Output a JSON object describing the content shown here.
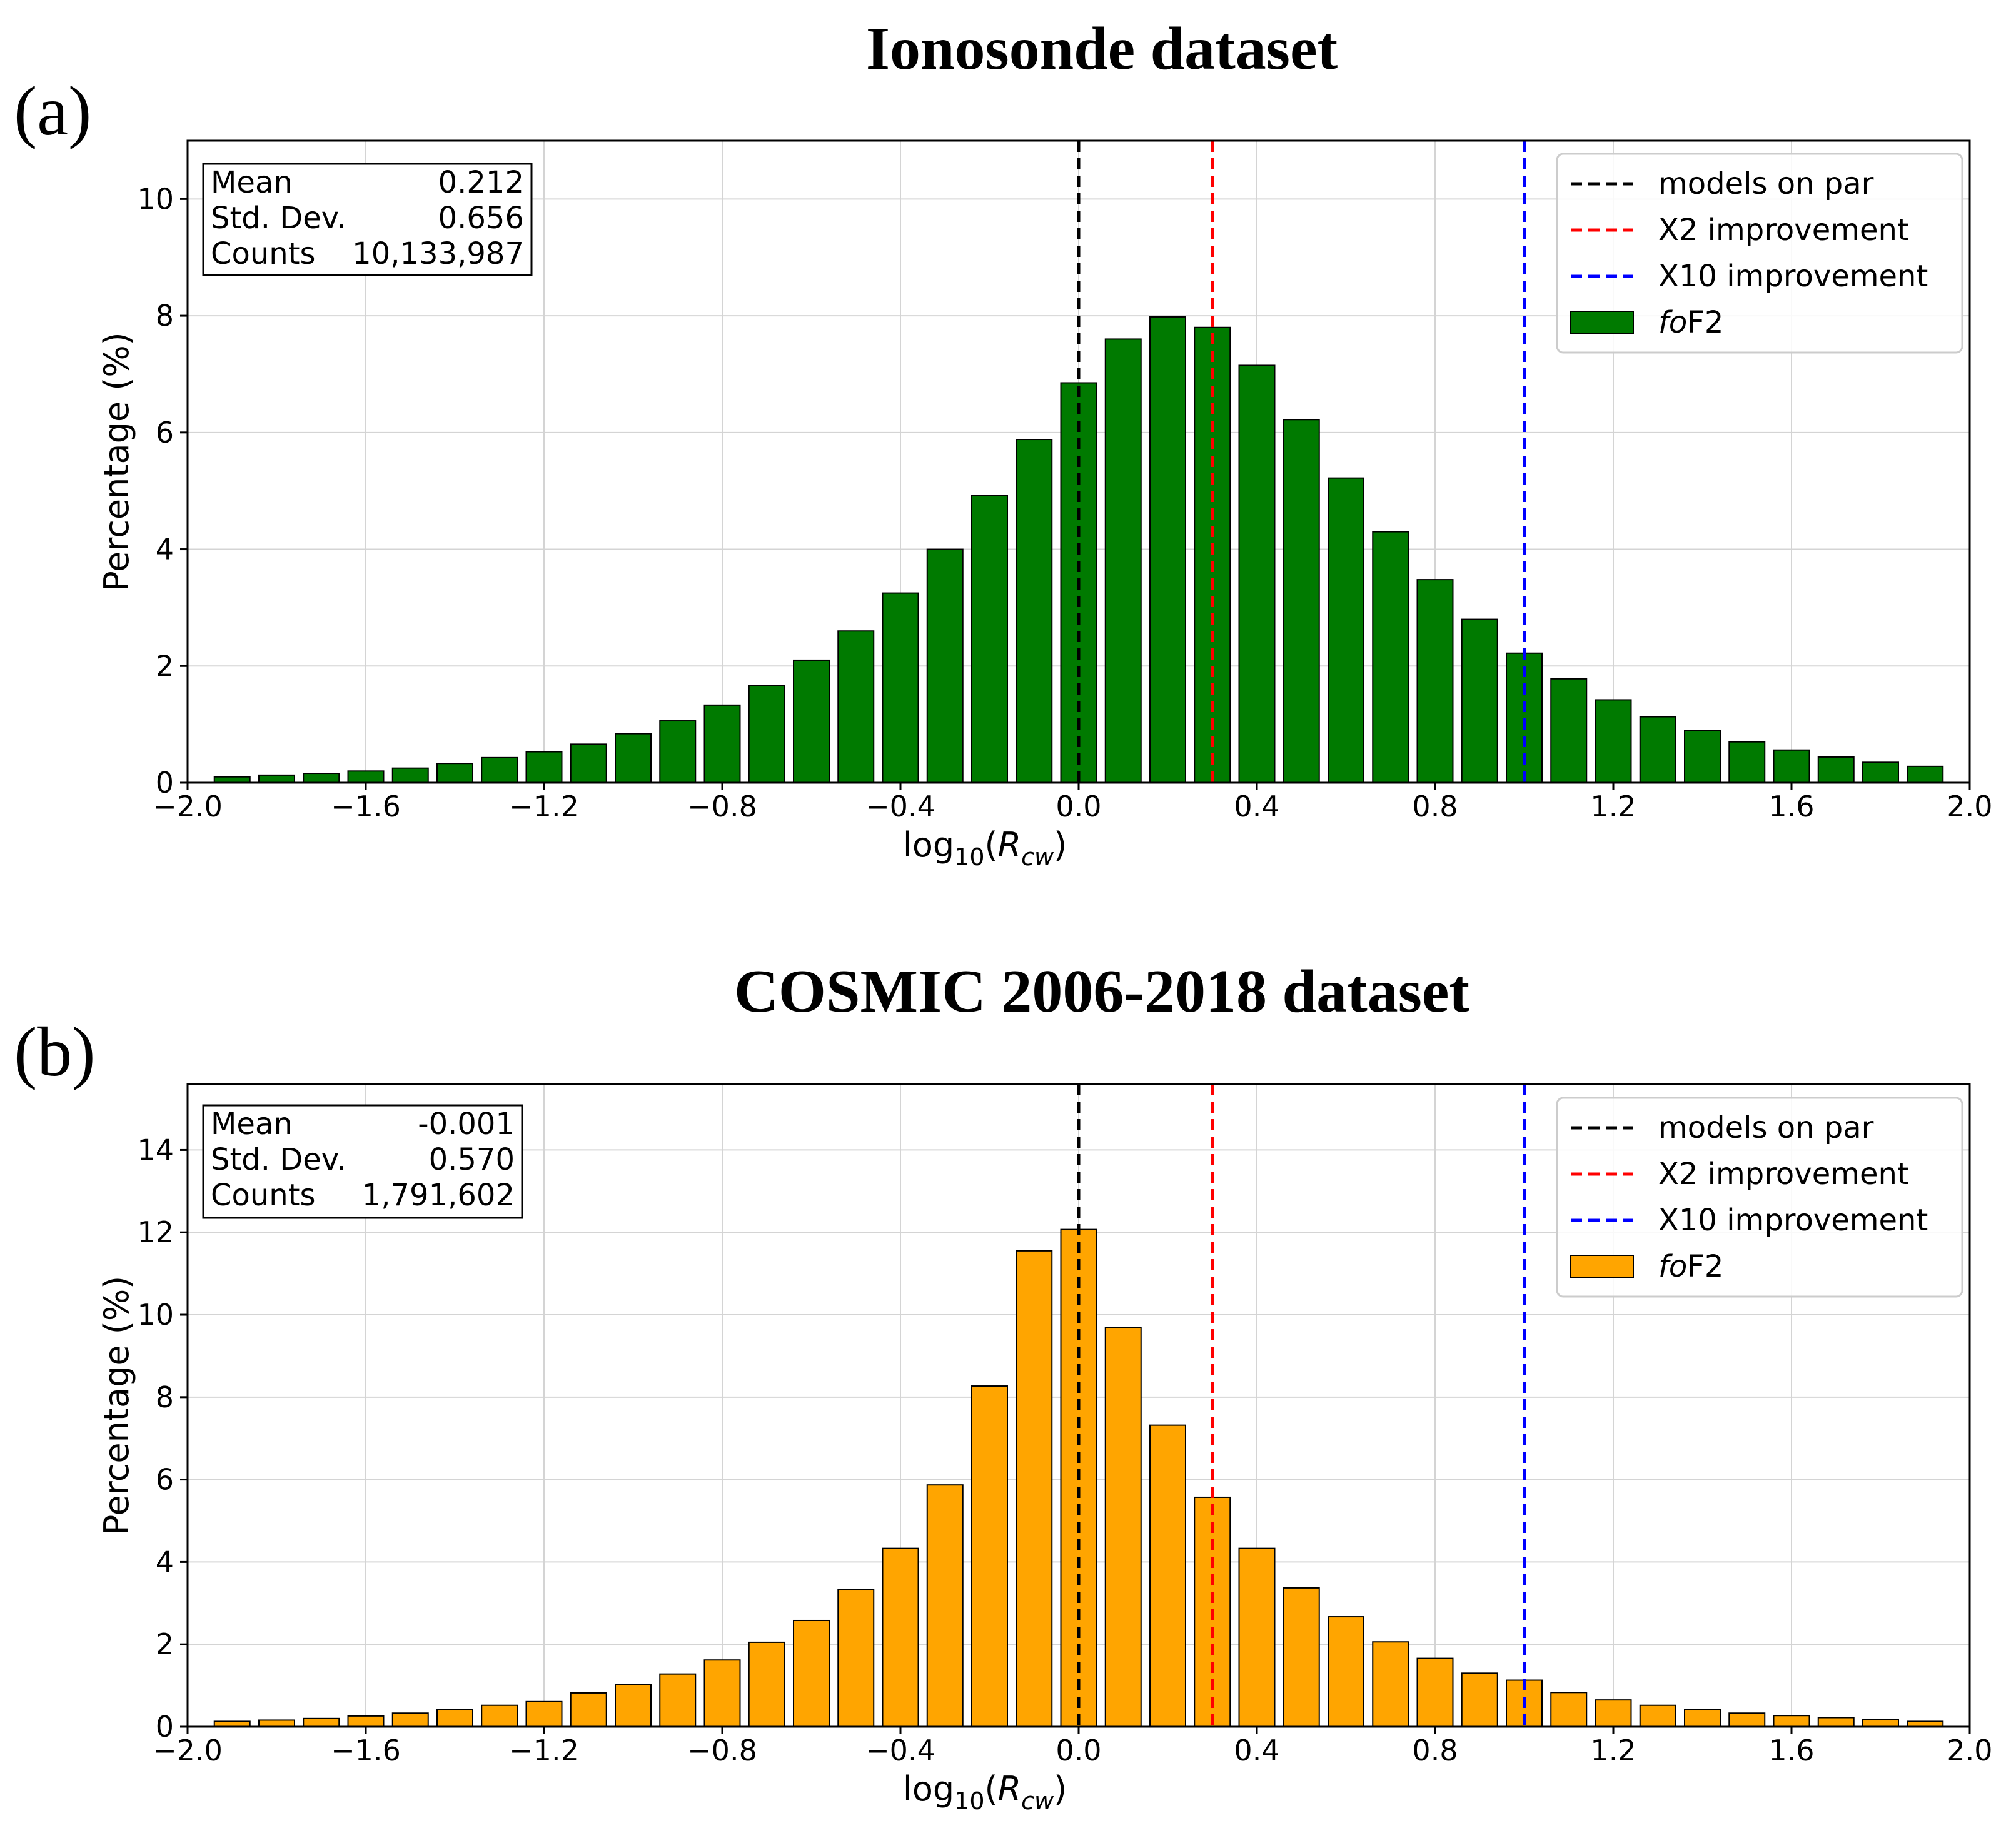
{
  "chart_data": [
    {
      "type": "bar",
      "panel_label": "(a)",
      "title": "Ionosonde dataset",
      "xlabel": "log10(Rcw)",
      "xlabel_base": "log",
      "xlabel_sub": "10",
      "xlabel_var": "R",
      "xlabel_var_sub": "cw",
      "ylabel": "Percentage (%)",
      "xlim": [
        -2.0,
        2.0
      ],
      "ylim": [
        0,
        11
      ],
      "xticks": [
        "−2.0",
        "−1.6",
        "−1.2",
        "−0.8",
        "−0.4",
        "0.0",
        "0.4",
        "0.8",
        "1.2",
        "1.6",
        "2.0"
      ],
      "xtick_values": [
        -2.0,
        -1.6,
        -1.2,
        -0.8,
        -0.4,
        0.0,
        0.4,
        0.8,
        1.2,
        1.6,
        2.0
      ],
      "yticks": [
        0,
        2,
        4,
        6,
        8,
        10
      ],
      "bar_color": "#007a00",
      "bin_centers": [
        -1.9,
        -1.8,
        -1.7,
        -1.6,
        -1.5,
        -1.4,
        -1.3,
        -1.2,
        -1.1,
        -1.0,
        -0.9,
        -0.8,
        -0.7,
        -0.6,
        -0.5,
        -0.4,
        -0.3,
        -0.2,
        -0.1,
        0.0,
        0.1,
        0.2,
        0.3,
        0.4,
        0.5,
        0.6,
        0.7,
        0.8,
        0.9,
        1.0,
        1.1,
        1.2,
        1.3,
        1.4,
        1.5,
        1.6,
        1.7,
        1.8,
        1.9
      ],
      "values": [
        0.1,
        0.13,
        0.16,
        0.2,
        0.25,
        0.33,
        0.43,
        0.53,
        0.66,
        0.84,
        1.06,
        1.33,
        1.67,
        2.1,
        2.6,
        3.25,
        4.0,
        4.92,
        5.88,
        6.85,
        7.6,
        7.98,
        7.8,
        7.15,
        6.22,
        5.22,
        4.3,
        3.48,
        2.8,
        2.22,
        1.78,
        1.42,
        1.13,
        0.89,
        0.7,
        0.56,
        0.44,
        0.35,
        0.28
      ],
      "stats": {
        "mean_label": "Mean",
        "mean_value": "0.212",
        "std_label": "Std. Dev.",
        "std_value": "0.656",
        "counts_label": "Counts",
        "counts_value": "10,133,987"
      },
      "vlines": [
        {
          "x": 0.0,
          "color": "#000000",
          "label": "models on par"
        },
        {
          "x": 0.301,
          "color": "#ff0000",
          "label": "X2 improvement"
        },
        {
          "x": 1.0,
          "color": "#0000ff",
          "label": "X10 improvement"
        }
      ],
      "legend_bar_italic": "fo",
      "legend_bar_rest": "F2",
      "legend_position": "top-right"
    },
    {
      "type": "bar",
      "panel_label": "(b)",
      "title": "COSMIC 2006-2018 dataset",
      "xlabel": "log10(Rcw)",
      "xlabel_base": "log",
      "xlabel_sub": "10",
      "xlabel_var": "R",
      "xlabel_var_sub": "cw",
      "ylabel": "Percentage (%)",
      "xlim": [
        -2.0,
        2.0
      ],
      "ylim": [
        0,
        15.6
      ],
      "xticks": [
        "−2.0",
        "−1.6",
        "−1.2",
        "−0.8",
        "−0.4",
        "0.0",
        "0.4",
        "0.8",
        "1.2",
        "1.6",
        "2.0"
      ],
      "xtick_values": [
        -2.0,
        -1.6,
        -1.2,
        -0.8,
        -0.4,
        0.0,
        0.4,
        0.8,
        1.2,
        1.6,
        2.0
      ],
      "yticks": [
        0,
        2,
        4,
        6,
        8,
        10,
        12,
        14
      ],
      "bar_color": "#ffa500",
      "bin_centers": [
        -1.9,
        -1.8,
        -1.7,
        -1.6,
        -1.5,
        -1.4,
        -1.3,
        -1.2,
        -1.1,
        -1.0,
        -0.9,
        -0.8,
        -0.7,
        -0.6,
        -0.5,
        -0.4,
        -0.3,
        -0.2,
        -0.1,
        0.0,
        0.1,
        0.2,
        0.3,
        0.4,
        0.5,
        0.6,
        0.7,
        0.8,
        0.9,
        1.0,
        1.1,
        1.2,
        1.3,
        1.4,
        1.5,
        1.6,
        1.7,
        1.8,
        1.9
      ],
      "values": [
        0.13,
        0.16,
        0.2,
        0.26,
        0.33,
        0.42,
        0.52,
        0.61,
        0.82,
        1.02,
        1.28,
        1.62,
        2.05,
        2.58,
        3.33,
        4.33,
        5.87,
        8.27,
        11.55,
        12.07,
        9.69,
        7.32,
        5.57,
        4.33,
        3.37,
        2.67,
        2.06,
        1.66,
        1.3,
        1.13,
        0.83,
        0.65,
        0.52,
        0.41,
        0.33,
        0.27,
        0.22,
        0.17,
        0.13
      ],
      "stats": {
        "mean_label": "Mean",
        "mean_value": "-0.001",
        "std_label": "Std. Dev.",
        "std_value": "0.570",
        "counts_label": "Counts",
        "counts_value": "1,791,602"
      },
      "vlines": [
        {
          "x": 0.0,
          "color": "#000000",
          "label": "models on par"
        },
        {
          "x": 0.301,
          "color": "#ff0000",
          "label": "X2 improvement"
        },
        {
          "x": 1.0,
          "color": "#0000ff",
          "label": "X10 improvement"
        }
      ],
      "legend_bar_italic": "fo",
      "legend_bar_rest": "F2",
      "legend_position": "top-right"
    }
  ]
}
